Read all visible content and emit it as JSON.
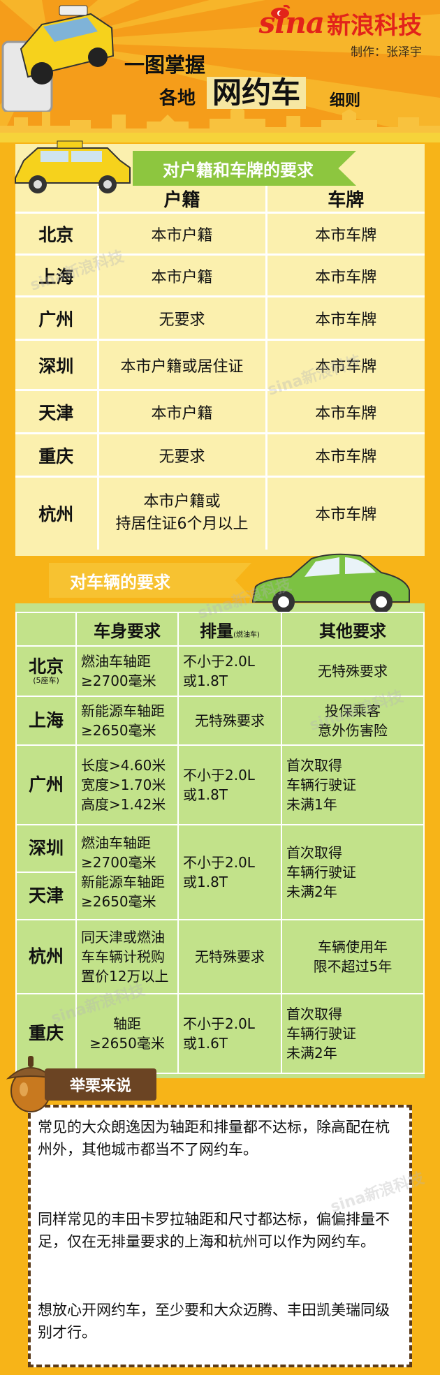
{
  "header": {
    "brand_logo": "sina",
    "brand_name": "新浪科技",
    "credit": "制作：张泽宇",
    "title_line1": "一图掌握",
    "title_line2_a": "各地",
    "title_line2_b": "网约车",
    "title_line2_c": "细则",
    "colors": {
      "bg": "#f59d1a",
      "brand": "#e2231a"
    }
  },
  "section1": {
    "banner": "对户籍和车牌的要求",
    "col_hukou": "户籍",
    "col_plate": "车牌",
    "rows": [
      {
        "city": "北京",
        "hukou": "本市户籍",
        "plate": "本市车牌"
      },
      {
        "city": "上海",
        "hukou": "本市户籍",
        "plate": "本市车牌"
      },
      {
        "city": "广州",
        "hukou": "无要求",
        "plate": "本市车牌"
      },
      {
        "city": "深圳",
        "hukou": "本市户籍或居住证",
        "plate": "本市车牌"
      },
      {
        "city": "天津",
        "hukou": "本市户籍",
        "plate": "本市车牌"
      },
      {
        "city": "重庆",
        "hukou": "无要求",
        "plate": "本市车牌"
      },
      {
        "city": "杭州",
        "hukou_l1": "本市户籍或",
        "hukou_l2": "持居住证6个月以上",
        "plate": "本市车牌"
      }
    ]
  },
  "section2": {
    "banner": "对车辆的要求",
    "col_body": "车身要求",
    "col_disp": "排量",
    "col_disp_note": "(燃油车)",
    "col_other": "其他要求",
    "beijing": {
      "city": "北京",
      "note": "(5座车)",
      "body_l1": "燃油车轴距",
      "body_l2": "≥2700毫米",
      "disp_l1": "不小于2.0L",
      "disp_l2": "或1.8T",
      "other": "无特殊要求"
    },
    "shanghai": {
      "city": "上海",
      "body_l1": "新能源车轴距",
      "body_l2": "≥2650毫米",
      "disp": "无特殊要求",
      "other_l1": "投保乘客",
      "other_l2": "意外伤害险"
    },
    "guangzhou": {
      "city": "广州",
      "body_l1": "长度>4.60米",
      "body_l2": "宽度>1.70米",
      "body_l3": "高度>1.42米",
      "disp_l1": "不小于2.0L",
      "disp_l2": "或1.8T",
      "other_l1": "首次取得",
      "other_l2": "车辆行驶证",
      "other_l3": "未满1年"
    },
    "shenzhen_tianjin": {
      "city1": "深圳",
      "city2": "天津",
      "body_l1": "燃油车轴距",
      "body_l2": "≥2700毫米",
      "body_l3": "新能源车轴距",
      "body_l4": "≥2650毫米",
      "disp_l1": "不小于2.0L",
      "disp_l2": "或1.8T",
      "other_l1": "首次取得",
      "other_l2": "车辆行驶证",
      "other_l3": "未满2年"
    },
    "hangzhou": {
      "city": "杭州",
      "body_l1": "同天津或燃油",
      "body_l2": "车车辆计税购",
      "body_l3": "置价12万以上",
      "disp": "无特殊要求",
      "other_l1": "车辆使用年",
      "other_l2": "限不超过5年"
    },
    "chongqing": {
      "city": "重庆",
      "body_l1": "轴距",
      "body_l2": "≥2650毫米",
      "disp_l1": "不小于2.0L",
      "disp_l2": "或1.6T",
      "other_l1": "首次取得",
      "other_l2": "车辆行驶证",
      "other_l3": "未满2年"
    }
  },
  "section3": {
    "banner": "举栗来说",
    "p1": "常见的大众朗逸因为轴距和排量都不达标，除高配在杭州外，其他城市都当不了网约车。",
    "p2": "同样常见的丰田卡罗拉轴距和尺寸都达标，偏偏排量不足，仅在无排量要求的上海和杭州可以作为网约车。",
    "p3": "想放心开网约车，至少要和大众迈腾、丰田凯美瑞同级别才行。"
  },
  "watermark": "sina新浪科技"
}
